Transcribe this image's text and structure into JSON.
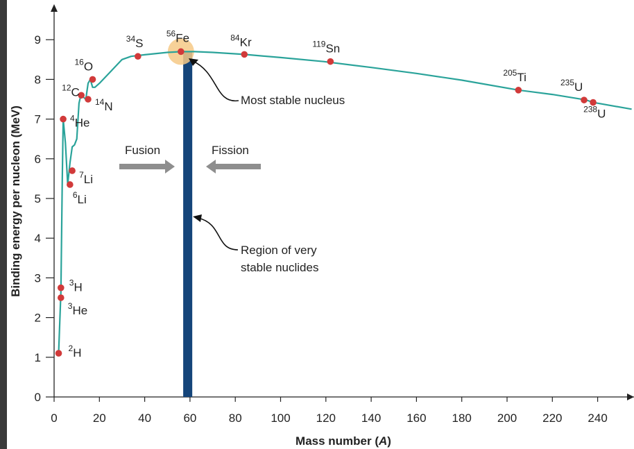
{
  "chart_data": {
    "type": "line",
    "xlabel": "Mass number (A)",
    "xlabel_parts": [
      "Mass number (",
      "A",
      ")"
    ],
    "ylabel": "Binding energy per nucleon (MeV)",
    "xlim": [
      0,
      255
    ],
    "ylim": [
      0,
      9.8
    ],
    "xticks": [
      0,
      20,
      40,
      60,
      80,
      100,
      120,
      140,
      160,
      180,
      200,
      220,
      240
    ],
    "yticks": [
      0,
      1,
      2,
      3,
      4,
      5,
      6,
      7,
      8,
      9
    ],
    "curve": {
      "x": [
        2,
        3,
        3.6,
        4,
        5,
        6,
        7,
        8,
        9,
        10,
        11,
        12,
        13,
        14,
        15,
        16,
        17,
        18,
        20,
        25,
        30,
        34,
        40,
        50,
        56,
        62,
        70,
        84,
        100,
        119,
        140,
        160,
        180,
        205,
        220,
        235,
        238,
        255
      ],
      "y": [
        1.1,
        2.65,
        5.5,
        7.0,
        6.4,
        5.35,
        5.9,
        6.3,
        6.35,
        6.5,
        7.4,
        7.65,
        7.55,
        7.5,
        7.9,
        8.0,
        7.8,
        7.8,
        7.9,
        8.2,
        8.5,
        8.58,
        8.62,
        8.68,
        8.7,
        8.7,
        8.68,
        8.63,
        8.55,
        8.45,
        8.3,
        8.15,
        7.98,
        7.73,
        7.62,
        7.48,
        7.42,
        7.25
      ]
    },
    "points": [
      {
        "isotope": "H",
        "mass": "2",
        "x": 2,
        "y": 1.1
      },
      {
        "isotope": "He",
        "mass": "3",
        "x": 3,
        "y": 2.5
      },
      {
        "isotope": "H",
        "mass": "3",
        "x": 3,
        "y": 2.75
      },
      {
        "isotope": "He",
        "mass": "4",
        "x": 4,
        "y": 7.0
      },
      {
        "isotope": "Li",
        "mass": "6",
        "x": 7,
        "y": 5.35
      },
      {
        "isotope": "Li",
        "mass": "7",
        "x": 8,
        "y": 5.7
      },
      {
        "isotope": "C",
        "mass": "12",
        "x": 12,
        "y": 7.6
      },
      {
        "isotope": "N",
        "mass": "14",
        "x": 15,
        "y": 7.5
      },
      {
        "isotope": "O",
        "mass": "16",
        "x": 17,
        "y": 8.0
      },
      {
        "isotope": "S",
        "mass": "34",
        "x": 37,
        "y": 8.58
      },
      {
        "isotope": "Fe",
        "mass": "56",
        "x": 56,
        "y": 8.7
      },
      {
        "isotope": "Kr",
        "mass": "84",
        "x": 84,
        "y": 8.63
      },
      {
        "isotope": "Sn",
        "mass": "119",
        "x": 122,
        "y": 8.45
      },
      {
        "isotope": "Ti",
        "mass": "205",
        "x": 205,
        "y": 7.73
      },
      {
        "isotope": "U",
        "mass": "235",
        "x": 234,
        "y": 7.48
      },
      {
        "isotope": "U",
        "mass": "238",
        "x": 238,
        "y": 7.42
      }
    ],
    "stable_region": {
      "x_from": 57,
      "x_to": 61
    },
    "highlight": {
      "x": 56,
      "y": 8.7
    },
    "annotations": {
      "most_stable": "Most stable nucleus",
      "region_line1": "Region of very",
      "region_line2": "stable nuclides",
      "fusion": "Fusion",
      "fission": "Fission"
    },
    "colors": {
      "curve": "#2aa39a",
      "points": "#d13a3a",
      "stable_band": "#15457a",
      "highlight": "#f6c986",
      "arrows": "#8e8e8e",
      "axes": "#222222"
    }
  }
}
